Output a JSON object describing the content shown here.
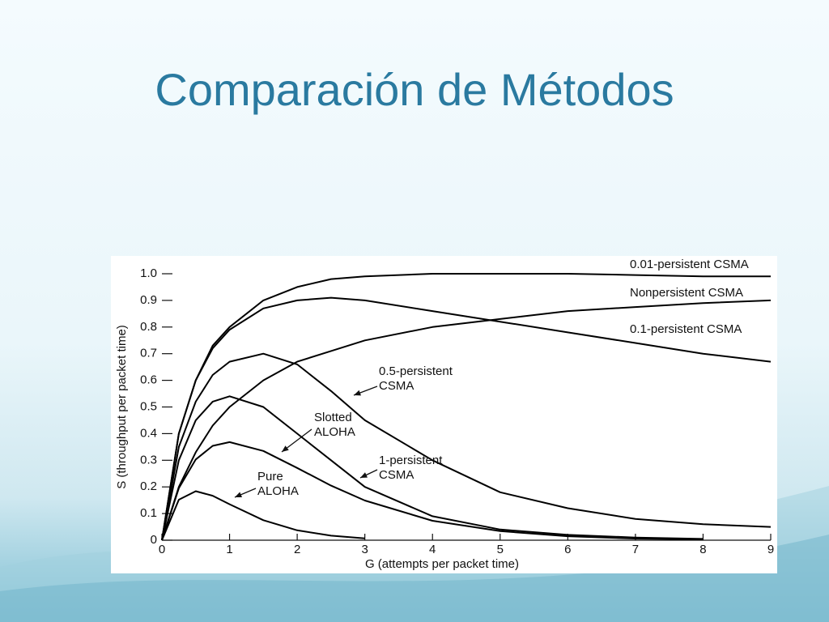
{
  "slide": {
    "title": "Comparación de Métodos"
  },
  "chart_data": {
    "type": "line",
    "x_label": "G (attempts per packet time)",
    "y_label": "S (throughput per packet time)",
    "xlim": [
      0,
      9
    ],
    "ylim": [
      0,
      1
    ],
    "xticks": [
      0,
      1,
      2,
      3,
      4,
      5,
      6,
      7,
      8,
      9
    ],
    "yticks": [
      0,
      0.1,
      0.2,
      0.3,
      0.4,
      0.5,
      0.6,
      0.7,
      0.8,
      0.9,
      {
        "value": 1,
        "label": "1.0"
      }
    ],
    "x": [
      0,
      0.25,
      0.5,
      0.75,
      1,
      1.5,
      2,
      2.5,
      3,
      4,
      5,
      6,
      7,
      8,
      9
    ],
    "series": [
      {
        "name": "0.01-persistent CSMA",
        "color": "#000000",
        "values": [
          0,
          0.4,
          0.6,
          0.73,
          0.8,
          0.9,
          0.95,
          0.98,
          0.99,
          1.0,
          1.0,
          1.0,
          0.995,
          0.99,
          0.99
        ]
      },
      {
        "name": "Nonpersistent CSMA",
        "color": "#000000",
        "values": [
          0,
          0.2,
          0.33,
          0.43,
          0.5,
          0.6,
          0.67,
          0.71,
          0.75,
          0.8,
          0.83,
          0.86,
          0.875,
          0.89,
          0.9
        ]
      },
      {
        "name": "0.1-persistent CSMA",
        "color": "#000000",
        "values": [
          0,
          0.4,
          0.6,
          0.72,
          0.79,
          0.87,
          0.9,
          0.91,
          0.9,
          0.86,
          0.82,
          0.78,
          0.74,
          0.7,
          0.67
        ]
      },
      {
        "name": "0.5-persistent CSMA",
        "color": "#000000",
        "values": [
          0,
          0.35,
          0.52,
          0.62,
          0.67,
          0.7,
          0.66,
          0.56,
          0.45,
          0.3,
          0.18,
          0.12,
          0.08,
          0.06,
          0.05
        ]
      },
      {
        "name": "Slotted ALOHA",
        "color": "#000000",
        "values": [
          0,
          0.195,
          0.303,
          0.354,
          0.368,
          0.335,
          0.271,
          0.205,
          0.149,
          0.073,
          0.034,
          0.015,
          0.006,
          0.003,
          null
        ]
      },
      {
        "name": "1-persistent CSMA",
        "color": "#000000",
        "values": [
          0,
          0.3,
          0.45,
          0.52,
          0.54,
          0.5,
          0.4,
          0.3,
          0.2,
          0.09,
          0.04,
          0.02,
          0.01,
          0.005,
          null
        ]
      },
      {
        "name": "Pure ALOHA",
        "color": "#000000",
        "values": [
          0,
          0.152,
          0.184,
          0.167,
          0.135,
          0.075,
          0.037,
          0.017,
          0.007,
          null,
          null,
          null,
          null,
          null,
          null
        ]
      }
    ]
  }
}
